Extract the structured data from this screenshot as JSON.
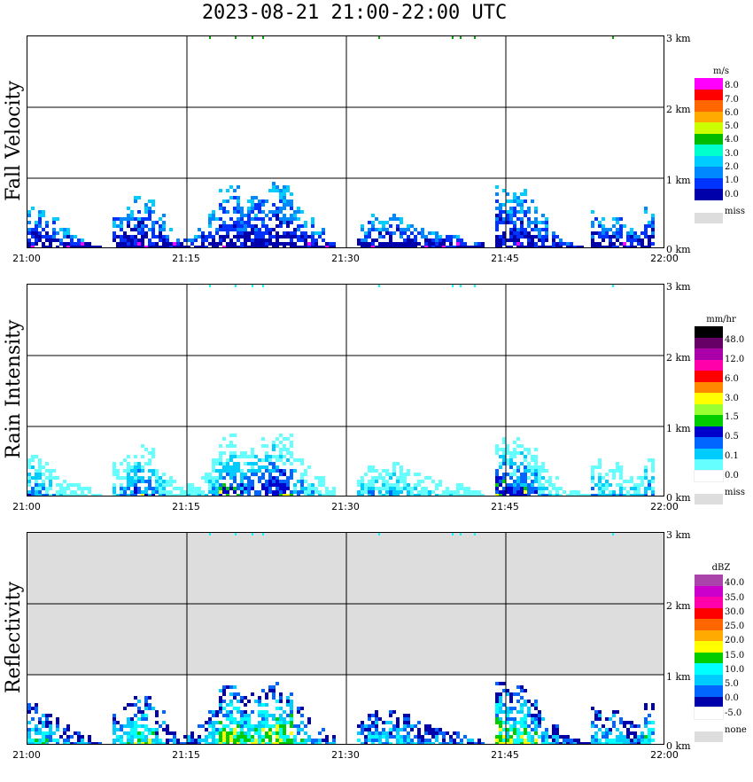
{
  "title": "2023-08-21   21:00-22:00 UTC",
  "x_ticks": [
    "21:00",
    "21:15",
    "21:30",
    "21:45",
    "22:00"
  ],
  "height_labels": [
    "3 km",
    "2 km",
    "1 km",
    "0 km"
  ],
  "panels": [
    {
      "label": "Fall Velocity",
      "unit": "m/s",
      "legend_ticks": [
        "8.0",
        "7.0",
        "6.0",
        "5.0",
        "4.0",
        "3.0",
        "2.0",
        "1.0",
        "0.0"
      ],
      "legend_colors": [
        "#ff00ff",
        "#ff0000",
        "#ff6600",
        "#ffaa00",
        "#ccff00",
        "#00bb00",
        "#00ffcc",
        "#00ccff",
        "#0088ff",
        "#0033ff",
        "#0000aa"
      ],
      "missing_label": "miss",
      "background": "#ffffff"
    },
    {
      "label": "Rain Intensity",
      "unit": "mm/hr",
      "legend_ticks": [
        "48.0",
        "12.0",
        "6.0",
        "3.0",
        "1.5",
        "0.5",
        "0.1",
        "0.0"
      ],
      "legend_colors": [
        "#000000",
        "#660066",
        "#aa00aa",
        "#ff00aa",
        "#ff0000",
        "#ff8800",
        "#ffff00",
        "#99ff33",
        "#00cc00",
        "#0000cc",
        "#0066ff",
        "#00ccff",
        "#66ffff",
        "#ffffff"
      ],
      "missing_label": "miss",
      "background": "#ffffff"
    },
    {
      "label": "Reflectivity",
      "unit": "dBZ",
      "legend_ticks": [
        "40.0",
        "35.0",
        "30.0",
        "25.0",
        "20.0",
        "15.0",
        "10.0",
        "5.0",
        "0.0",
        "-5.0"
      ],
      "legend_colors": [
        "#aa44aa",
        "#cc00cc",
        "#ff00aa",
        "#ff0000",
        "#ff6600",
        "#ffaa00",
        "#ffff00",
        "#00cc00",
        "#00ffff",
        "#00ccff",
        "#0066ff",
        "#0000aa",
        "#ffffff"
      ],
      "missing_label": "none",
      "background": "#dddddd"
    }
  ],
  "chart_data": {
    "type": "heatmap",
    "title": "2023-08-21   21:00-22:00 UTC",
    "x": {
      "label": "",
      "ticks": [
        "21:00",
        "21:15",
        "21:30",
        "21:45",
        "22:00"
      ],
      "range": [
        "21:00",
        "22:00"
      ]
    },
    "y": {
      "label": "",
      "unit": "km",
      "range": [
        0,
        3
      ],
      "ticks": [
        0,
        1,
        2,
        3
      ]
    },
    "grid": true,
    "legend": "right",
    "series": [
      {
        "name": "Fall Velocity",
        "unit": "m/s"
      },
      {
        "name": "Rain Intensity",
        "unit": "mm/hr"
      },
      {
        "name": "Reflectivity",
        "unit": "dBZ"
      }
    ],
    "precip_periods_min": [
      [
        0,
        6
      ],
      [
        7,
        13
      ],
      [
        14,
        28
      ],
      [
        31,
        42
      ],
      [
        44,
        58
      ]
    ],
    "echo_top_km_by_minute": [
      0.6,
      0.55,
      0.45,
      0.3,
      0.2,
      0.15,
      0.05,
      0,
      0.5,
      0.6,
      0.75,
      0.7,
      0.5,
      0.3,
      0.15,
      0.2,
      0.35,
      0.55,
      0.85,
      0.9,
      0.75,
      0.8,
      0.85,
      0.95,
      0.9,
      0.6,
      0.45,
      0.3,
      0.15,
      0.05,
      0,
      0.35,
      0.5,
      0.4,
      0.5,
      0.45,
      0.35,
      0.3,
      0.25,
      0.2,
      0.2,
      0.15,
      0.1,
      0,
      0.9,
      0.8,
      0.85,
      0.7,
      0.5,
      0.3,
      0.15,
      0.1,
      0.05,
      0.55,
      0.45,
      0.5,
      0.35,
      0.3,
      0.6,
      0.2
    ]
  }
}
